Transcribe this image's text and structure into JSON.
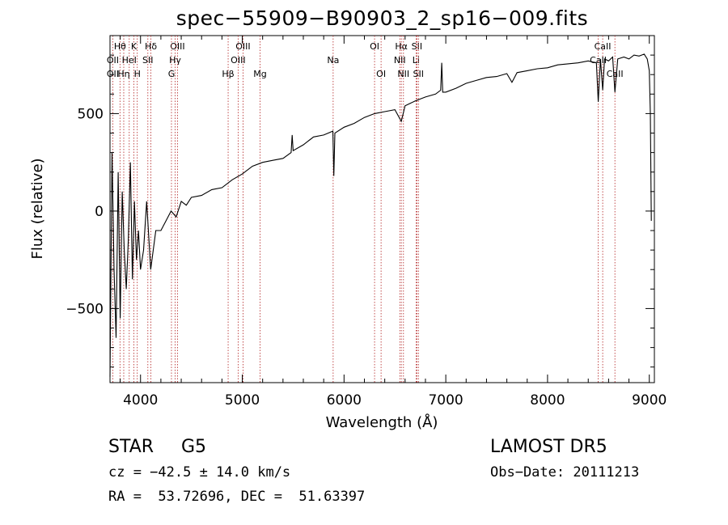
{
  "chart_data": {
    "type": "line",
    "title": "spec−55909−B90903_2_sp16−009.fits",
    "xlabel": "Wavelength (Å)",
    "ylabel": "Flux (relative)",
    "xlim": [
      3700,
      9050
    ],
    "ylim": [
      -880,
      900
    ],
    "xticks": [
      4000,
      5000,
      6000,
      7000,
      8000,
      9000
    ],
    "yticks": [
      -500,
      0,
      500
    ],
    "ytick_labels": [
      "−500",
      "0",
      "500"
    ],
    "grid": false,
    "series": [
      {
        "x": [
          3700,
          3720,
          3740,
          3760,
          3780,
          3800,
          3820,
          3840,
          3860,
          3880,
          3900,
          3920,
          3940,
          3960,
          3980,
          4000,
          4030,
          4060,
          4100,
          4150,
          4200,
          4250,
          4300,
          4350,
          4400,
          4450,
          4500,
          4600,
          4700,
          4800,
          4900,
          5000,
          5100,
          5200,
          5300,
          5400,
          5480,
          5490,
          5500,
          5600,
          5700,
          5800,
          5890,
          5900,
          5910,
          6000,
          6100,
          6200,
          6300,
          6400,
          6500,
          6563,
          6600,
          6700,
          6800,
          6900,
          6950,
          6960,
          6970,
          7000,
          7100,
          7200,
          7300,
          7400,
          7500,
          7600,
          7650,
          7700,
          7800,
          7900,
          8000,
          8100,
          8200,
          8300,
          8400,
          8480,
          8498,
          8520,
          8542,
          8560,
          8600,
          8640,
          8662,
          8690,
          8750,
          8800,
          8850,
          8900,
          8950,
          8980,
          9000,
          9010,
          9020
        ],
        "y": [
          -850,
          300,
          -300,
          -650,
          200,
          -550,
          100,
          -200,
          -400,
          -150,
          250,
          -350,
          50,
          -250,
          -100,
          -300,
          -200,
          50,
          -300,
          -100,
          -100,
          -50,
          0,
          -30,
          50,
          30,
          70,
          80,
          110,
          120,
          160,
          190,
          230,
          250,
          260,
          270,
          300,
          390,
          310,
          340,
          380,
          390,
          410,
          180,
          400,
          430,
          450,
          480,
          500,
          510,
          520,
          460,
          540,
          565,
          585,
          600,
          620,
          760,
          610,
          610,
          630,
          655,
          670,
          685,
          690,
          705,
          660,
          710,
          720,
          730,
          735,
          750,
          755,
          760,
          770,
          760,
          560,
          780,
          620,
          780,
          770,
          790,
          610,
          780,
          790,
          780,
          800,
          795,
          805,
          780,
          720,
          500,
          -50
        ]
      }
    ],
    "line_markers": {
      "row1": [
        {
          "label": "Hθ",
          "x": 3798
        },
        {
          "label": "K",
          "x": 3934
        },
        {
          "label": "Hδ",
          "x": 4102
        },
        {
          "label": "OIII",
          "x": 4363
        },
        {
          "label": "OIII",
          "x": 5007
        },
        {
          "label": "OI",
          "x": 6300
        },
        {
          "label": "Hα",
          "x": 6563
        },
        {
          "label": "SII",
          "x": 6716
        },
        {
          "label": "CaII",
          "x": 8542
        }
      ],
      "row2": [
        {
          "label": "OII",
          "x": 3727
        },
        {
          "label": "HeI",
          "x": 3889
        },
        {
          "label": "SII",
          "x": 4072
        },
        {
          "label": "Hγ",
          "x": 4340
        },
        {
          "label": "OIII",
          "x": 4959
        },
        {
          "label": "Na",
          "x": 5893
        },
        {
          "label": "NII",
          "x": 6548
        },
        {
          "label": "Li",
          "x": 6708
        },
        {
          "label": "CaII",
          "x": 8498
        }
      ],
      "row3": [
        {
          "label": "OII",
          "x": 3727
        },
        {
          "label": "Hη",
          "x": 3835
        },
        {
          "label": "H",
          "x": 3968
        },
        {
          "label": "G",
          "x": 4304
        },
        {
          "label": "Hβ",
          "x": 4861
        },
        {
          "label": "Mg",
          "x": 5175
        },
        {
          "label": "OI",
          "x": 6364
        },
        {
          "label": "NII",
          "x": 6584
        },
        {
          "label": "SII",
          "x": 6731
        },
        {
          "label": "CaII",
          "x": 8662
        }
      ],
      "line_color": "#b22222"
    }
  },
  "info": {
    "object_class": "STAR",
    "subclass": "G5",
    "survey": "LAMOST DR5",
    "velocity": "cz = −42.5 ± 14.0 km/s",
    "obs_date": "Obs−Date: 20111213",
    "coords": "RA =  53.72696, DEC =  51.63397"
  }
}
